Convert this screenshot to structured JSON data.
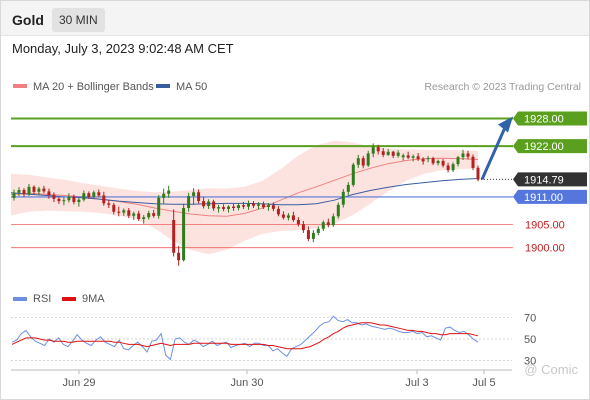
{
  "header": {
    "instrument": "Gold",
    "timeframe": "30 MIN",
    "datetime": "Monday, July 3, 2023 9:02:48 AM CET"
  },
  "legend": {
    "ma20_label": "MA 20 + Bollinger Bands",
    "ma50_label": "MA 50",
    "rsi_label": "RSI",
    "rsi_ma_label": "9MA",
    "source": "Research © 2023 Trading Central",
    "watermark": "@ Comic"
  },
  "colors": {
    "bull": "#2e7d1d",
    "bear": "#b32020",
    "ma20": "#f08080",
    "band_fill": "#fde3e0",
    "ma50": "#3a5da0",
    "resistance": "#5aa01e",
    "support": "#ef6262",
    "pivot": "#5577dd",
    "current_box": "#333333",
    "arrow": "#2f62a8",
    "rsi": "#6e8fe0",
    "rsi_ma": "#dd1111"
  },
  "chart_data": [
    {
      "type": "candlestick",
      "title": "Gold",
      "timeframe": "30 MIN",
      "x_tick_labels": [
        "Jun 29",
        "Jun 30",
        "Jul 3",
        "Jul 5"
      ],
      "ylim": [
        1893,
        1932
      ],
      "current_price": 1914.79,
      "levels": [
        {
          "label": "1928.00",
          "value": 1928.0,
          "kind": "resistance"
        },
        {
          "label": "1922.00",
          "value": 1922.0,
          "kind": "resistance"
        },
        {
          "label": "1914.79",
          "value": 1914.79,
          "kind": "current"
        },
        {
          "label": "1911.00",
          "value": 1911.0,
          "kind": "pivot"
        },
        {
          "label": "1905.00",
          "value": 1905.0,
          "kind": "support"
        },
        {
          "label": "1900.00",
          "value": 1900.0,
          "kind": "support"
        }
      ],
      "arrow": {
        "from_value": 1914.79,
        "to_value": 1928.0,
        "direction": "up"
      },
      "ma20_bollinger": {
        "mid": [
          1911.5,
          1911.8,
          1911.6,
          1911.3,
          1911.0,
          1910.5,
          1910.0,
          1909.4,
          1908.6,
          1907.9,
          1907.3,
          1906.9,
          1906.8,
          1907.4,
          1908.6,
          1910.3,
          1911.9,
          1913.2,
          1914.6,
          1916.0,
          1917.2,
          1918.2,
          1918.9,
          1919.3,
          1919.4,
          1919.3,
          1919.1
        ],
        "upper": [
          1916.0,
          1915.8,
          1915.2,
          1914.7,
          1914.0,
          1913.4,
          1912.8,
          1912.3,
          1912.0,
          1912.1,
          1912.5,
          1912.9,
          1912.8,
          1913.2,
          1914.5,
          1917.0,
          1920.0,
          1922.2,
          1923.2,
          1922.8,
          1922.0,
          1921.5,
          1921.3,
          1921.2,
          1921.2,
          1921.1,
          1921.0
        ],
        "lower": [
          1907.0,
          1907.8,
          1908.0,
          1907.9,
          1907.8,
          1907.5,
          1907.0,
          1906.1,
          1904.2,
          1901.5,
          1899.5,
          1898.6,
          1899.5,
          1901.5,
          1903.0,
          1903.6,
          1903.8,
          1904.2,
          1905.2,
          1907.0,
          1909.5,
          1912.2,
          1914.5,
          1916.0,
          1916.8,
          1917.0,
          1917.2
        ]
      },
      "ma50": [
        1911.9,
        1911.6,
        1911.3,
        1911.0,
        1910.8,
        1910.5,
        1910.1,
        1909.8,
        1909.5,
        1909.4,
        1909.4,
        1909.5,
        1909.6,
        1909.6,
        1909.5,
        1909.3,
        1909.3,
        1909.5,
        1910.3,
        1911.5,
        1912.4,
        1913.1,
        1913.7,
        1914.1,
        1914.5,
        1914.8,
        1915.0
      ],
      "series_ohlc": [
        [
          1910.8,
          1912.6,
          1910.2,
          1911.9
        ],
        [
          1911.9,
          1913.1,
          1911.2,
          1912.5
        ],
        [
          1912.5,
          1912.9,
          1911.0,
          1911.6
        ],
        [
          1911.6,
          1913.8,
          1911.2,
          1913.2
        ],
        [
          1913.2,
          1913.5,
          1911.6,
          1912.1
        ],
        [
          1912.1,
          1913.2,
          1911.4,
          1912.8
        ],
        [
          1912.8,
          1913.4,
          1911.8,
          1912.2
        ],
        [
          1912.2,
          1912.8,
          1910.6,
          1911.4
        ],
        [
          1911.4,
          1912.0,
          1909.9,
          1910.6
        ],
        [
          1910.6,
          1911.0,
          1909.5,
          1910.1
        ],
        [
          1910.1,
          1910.9,
          1909.2,
          1910.3
        ],
        [
          1910.3,
          1911.8,
          1909.8,
          1911.1
        ],
        [
          1911.1,
          1911.5,
          1909.4,
          1909.9
        ],
        [
          1909.9,
          1910.8,
          1908.9,
          1910.4
        ],
        [
          1910.4,
          1912.4,
          1910.0,
          1911.8
        ],
        [
          1911.8,
          1912.2,
          1910.6,
          1911.0
        ],
        [
          1911.0,
          1912.4,
          1910.7,
          1912.0
        ],
        [
          1912.0,
          1912.6,
          1910.9,
          1911.3
        ],
        [
          1911.3,
          1912.1,
          1909.1,
          1909.6
        ],
        [
          1909.6,
          1910.3,
          1908.6,
          1909.3
        ],
        [
          1909.3,
          1909.7,
          1907.2,
          1907.8
        ],
        [
          1907.8,
          1908.9,
          1906.8,
          1907.6
        ],
        [
          1907.6,
          1908.5,
          1906.9,
          1908.1
        ],
        [
          1908.1,
          1908.6,
          1906.4,
          1906.9
        ],
        [
          1906.9,
          1907.8,
          1906.0,
          1907.4
        ],
        [
          1907.4,
          1908.0,
          1905.8,
          1906.2
        ],
        [
          1906.2,
          1907.1,
          1905.2,
          1906.6
        ],
        [
          1906.6,
          1908.0,
          1906.1,
          1907.5
        ],
        [
          1907.5,
          1908.2,
          1906.5,
          1906.9
        ],
        [
          1906.9,
          1911.4,
          1906.3,
          1910.8
        ],
        [
          1910.8,
          1912.8,
          1909.6,
          1911.7
        ],
        [
          1911.7,
          1913.4,
          1910.8,
          1912.4
        ],
        [
          1906.0,
          1908.3,
          1898.1,
          1898.9
        ],
        [
          1898.9,
          1900.4,
          1896.1,
          1897.3
        ],
        [
          1897.3,
          1909.5,
          1897.0,
          1908.6
        ],
        [
          1908.6,
          1911.9,
          1907.8,
          1911.2
        ],
        [
          1911.2,
          1912.9,
          1909.3,
          1912.0
        ],
        [
          1912.0,
          1912.6,
          1909.6,
          1910.1
        ],
        [
          1910.1,
          1911.0,
          1908.5,
          1909.0
        ],
        [
          1909.0,
          1910.5,
          1908.4,
          1910.0
        ],
        [
          1910.0,
          1910.4,
          1908.0,
          1908.5
        ],
        [
          1908.5,
          1909.3,
          1907.6,
          1908.8
        ],
        [
          1908.8,
          1909.4,
          1907.9,
          1908.4
        ],
        [
          1908.4,
          1909.2,
          1907.6,
          1908.9
        ],
        [
          1908.9,
          1909.5,
          1908.0,
          1908.6
        ],
        [
          1908.6,
          1909.6,
          1908.1,
          1909.2
        ],
        [
          1909.2,
          1909.9,
          1908.4,
          1908.9
        ],
        [
          1908.9,
          1910.2,
          1908.2,
          1909.6
        ],
        [
          1909.6,
          1910.1,
          1908.6,
          1909.1
        ],
        [
          1909.1,
          1909.9,
          1908.3,
          1909.4
        ],
        [
          1909.4,
          1910.0,
          1908.4,
          1908.8
        ],
        [
          1908.8,
          1909.7,
          1908.0,
          1909.2
        ],
        [
          1909.2,
          1909.8,
          1907.9,
          1908.4
        ],
        [
          1908.4,
          1909.0,
          1906.8,
          1907.2
        ],
        [
          1907.2,
          1907.9,
          1906.1,
          1906.5
        ],
        [
          1906.5,
          1907.5,
          1905.9,
          1907.0
        ],
        [
          1907.0,
          1907.8,
          1905.6,
          1906.0
        ],
        [
          1906.0,
          1906.6,
          1904.6,
          1905.1
        ],
        [
          1905.1,
          1905.8,
          1903.2,
          1903.8
        ],
        [
          1903.8,
          1904.6,
          1901.4,
          1901.9
        ],
        [
          1901.9,
          1903.8,
          1901.2,
          1903.2
        ],
        [
          1903.2,
          1904.6,
          1902.7,
          1904.1
        ],
        [
          1904.1,
          1905.9,
          1903.6,
          1905.5
        ],
        [
          1905.5,
          1906.3,
          1904.4,
          1904.9
        ],
        [
          1904.9,
          1907.4,
          1904.5,
          1906.8
        ],
        [
          1906.8,
          1909.8,
          1906.3,
          1909.3
        ],
        [
          1909.3,
          1912.7,
          1908.7,
          1912.1
        ],
        [
          1912.1,
          1914.2,
          1911.4,
          1913.6
        ],
        [
          1913.6,
          1918.4,
          1913.2,
          1918.0
        ],
        [
          1918.0,
          1920.1,
          1917.3,
          1919.4
        ],
        [
          1919.4,
          1919.9,
          1917.2,
          1917.8
        ],
        [
          1917.8,
          1921.0,
          1917.5,
          1920.4
        ],
        [
          1920.4,
          1922.6,
          1919.6,
          1921.8
        ],
        [
          1921.8,
          1922.3,
          1920.2,
          1920.9
        ],
        [
          1920.9,
          1921.6,
          1919.6,
          1920.1
        ],
        [
          1920.1,
          1921.4,
          1919.9,
          1920.8
        ],
        [
          1920.8,
          1921.0,
          1919.4,
          1919.9
        ],
        [
          1919.9,
          1921.1,
          1919.5,
          1920.6
        ],
        [
          1919.6,
          1920.4,
          1918.9,
          1920.0
        ],
        [
          1920.0,
          1920.8,
          1919.2,
          1919.5
        ],
        [
          1919.5,
          1920.2,
          1918.7,
          1919.8
        ],
        [
          1919.8,
          1920.5,
          1918.8,
          1919.2
        ],
        [
          1919.2,
          1919.6,
          1918.0,
          1918.7
        ],
        [
          1919.2,
          1919.9,
          1918.5,
          1919.4
        ],
        [
          1919.4,
          1919.7,
          1917.9,
          1918.3
        ],
        [
          1918.3,
          1919.1,
          1917.8,
          1918.8
        ],
        [
          1918.8,
          1919.2,
          1917.4,
          1917.8
        ],
        [
          1917.8,
          1918.4,
          1916.3,
          1916.8
        ],
        [
          1916.8,
          1918.5,
          1916.4,
          1918.1
        ],
        [
          1918.1,
          1919.9,
          1917.6,
          1919.6
        ],
        [
          1919.6,
          1921.2,
          1919.0,
          1920.4
        ],
        [
          1920.4,
          1921.0,
          1919.1,
          1919.7
        ],
        [
          1919.7,
          1920.2,
          1916.8,
          1917.3
        ],
        [
          1917.3,
          1917.8,
          1914.4,
          1914.79
        ]
      ]
    },
    {
      "type": "line",
      "title": "RSI",
      "y_tick_labels": [
        "70",
        "50",
        "30"
      ],
      "ylim": [
        25,
        75
      ],
      "series": [
        {
          "name": "RSI",
          "values": [
            47,
            49,
            55,
            58,
            52,
            48,
            46,
            44,
            50,
            47,
            51,
            45,
            43,
            48,
            54,
            49,
            46,
            44,
            49,
            52,
            47,
            45,
            43,
            49,
            41,
            40,
            44,
            47,
            43,
            38,
            48,
            49,
            55,
            35,
            31,
            50,
            51,
            47,
            45,
            49,
            47,
            43,
            45,
            48,
            44,
            46,
            47,
            42,
            44,
            45,
            46,
            43,
            46,
            46,
            44,
            44,
            39,
            41,
            37,
            34,
            41,
            43,
            45,
            49,
            53,
            57,
            62,
            65,
            66,
            71,
            67,
            66,
            68,
            65,
            65,
            63,
            64,
            62,
            61,
            60,
            59,
            60,
            59,
            57,
            56,
            56,
            57,
            55,
            56,
            52,
            53,
            51,
            49,
            60,
            61,
            58,
            56,
            57,
            54,
            50,
            47
          ]
        },
        {
          "name": "9MA",
          "values": [
            45,
            47,
            49,
            51,
            51,
            51,
            50,
            49,
            49,
            48,
            48,
            48,
            47,
            47,
            48,
            48,
            48,
            48,
            48,
            48,
            48,
            48,
            47,
            47,
            46,
            45,
            45,
            45,
            44,
            43,
            44,
            45,
            46,
            45,
            44,
            45,
            45,
            45,
            45,
            46,
            46,
            46,
            46,
            46,
            46,
            46,
            46,
            45,
            45,
            45,
            45,
            45,
            45,
            45,
            45,
            44,
            44,
            43,
            42,
            41,
            41,
            41,
            41,
            42,
            43,
            45,
            47,
            50,
            52,
            55,
            57,
            60,
            62,
            63,
            64,
            65,
            65,
            65,
            64,
            63,
            63,
            62,
            61,
            60,
            59,
            58,
            58,
            57,
            57,
            56,
            55,
            55,
            54,
            54,
            55,
            55,
            55,
            55,
            55,
            54,
            53
          ]
        }
      ]
    }
  ]
}
